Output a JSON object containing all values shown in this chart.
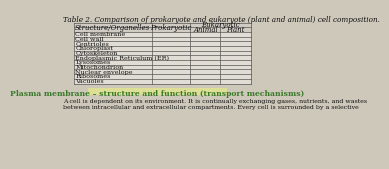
{
  "title": "Table 2. Comparison of prokaryote and eukaryote (plant and animal) cell composition.",
  "rows": [
    "Cell membrane",
    "Cell wall",
    "Centrioles",
    "Chloroplast",
    "Cytoskeleton",
    "Endoplasmic Reticulum (ER)",
    "Lysosomes",
    "Mitochondrion",
    "Nuclear envelope",
    "Ribosomes",
    "Vacuoles"
  ],
  "col_header_1": "Structure/Organelles",
  "col_header_2": "Prokaryotic",
  "col_header_3": "Eukaryotic",
  "sub_header_1": "Animal",
  "sub_header_2": "Plant",
  "footer_text": "Plasma membrane – structure and function (transport mechanisms)",
  "footer_body_1": "A cell is dependent on its environment. It is continually exchanging gases, nutrients, and wastes",
  "footer_body_2": "between intracellular and extracellular compartments. Every cell is surrounded by a selective",
  "bg_color": "#cec8bb",
  "table_fill": "#e2ddd4",
  "header_fill": "#d0ccc4",
  "line_color": "#555555",
  "footer_hl_color": "#3a7a2a",
  "title_fs": 5.2,
  "header_fs": 5.0,
  "cell_fs": 4.6,
  "footer_fs": 5.5,
  "body_fs": 4.5
}
